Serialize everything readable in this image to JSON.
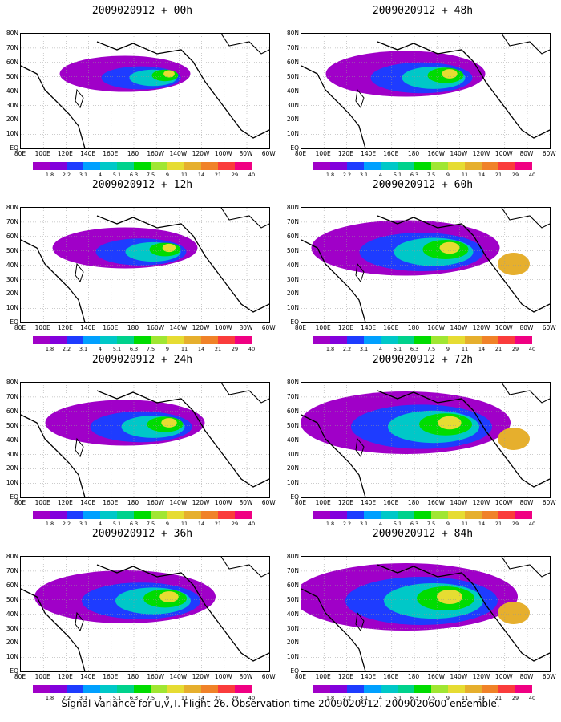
{
  "panels": [
    {
      "title": "2009020912 + 00h"
    },
    {
      "title": "2009020912 + 48h"
    },
    {
      "title": "2009020912 + 12h"
    },
    {
      "title": "2009020912 + 60h"
    },
    {
      "title": "2009020912 + 24h"
    },
    {
      "title": "2009020912 + 72h"
    },
    {
      "title": "2009020912 + 36h"
    },
    {
      "title": "2009020912 + 84h"
    }
  ],
  "lat_labels": [
    "80N",
    "70N",
    "60N",
    "50N",
    "40N",
    "30N",
    "20N",
    "10N",
    "EQ"
  ],
  "lon_labels": [
    "80E",
    "100E",
    "120E",
    "140E",
    "160E",
    "180",
    "160W",
    "140W",
    "120W",
    "100W",
    "80W",
    "60W"
  ],
  "colorbar": {
    "labels": [
      "1.8",
      "2.2",
      "3.1",
      "4",
      "5.1",
      "6.3",
      "7.5",
      "9",
      "11",
      "14",
      "21",
      "29",
      "40"
    ],
    "colors": [
      "#a000c8",
      "#8200dc",
      "#1e3cff",
      "#00a0ff",
      "#00c8c8",
      "#00d28c",
      "#00dc00",
      "#a0e632",
      "#e6dc32",
      "#e6af2d",
      "#f08228",
      "#fa3c3c",
      "#f00082"
    ]
  },
  "caption": "Signal Variance for u,v,T. Flight 26. Observation time 2009020912. 2009020600 ensemble."
}
